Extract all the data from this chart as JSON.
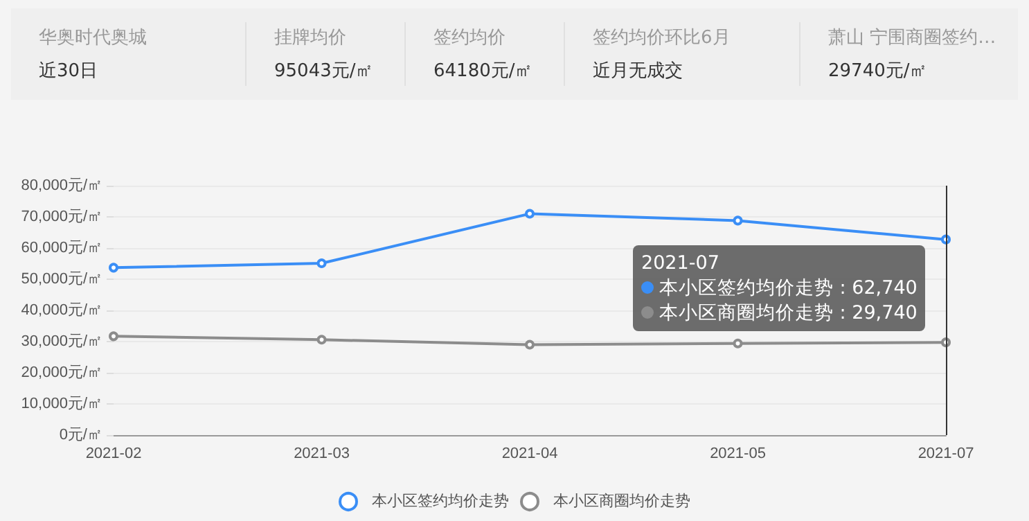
{
  "chart_data": [
    {
      "type": "other",
      "annotations": [
        "华奥时代奥城",
        "近30日",
        "挂牌均价",
        "95043元/㎡",
        "签约均价",
        "64180元/㎡",
        "签约均价环比6月",
        "近月无成交",
        "萧山 宁围商圈签约…",
        "29740元/㎡"
      ]
    },
    {
      "type": "line",
      "categories": [
        "2021-02",
        "2021-03",
        "2021-04",
        "2021-05",
        "2021-07"
      ],
      "series": [
        {
          "name": "本小区签约均价走势",
          "color": "#3a8ef6",
          "values": [
            53700,
            55100,
            71000,
            68800,
            62740
          ]
        },
        {
          "name": "本小区商圈均价走势",
          "color": "#8c8c8c",
          "values": [
            31700,
            30600,
            29000,
            29400,
            29740
          ]
        }
      ],
      "ylim": [
        0,
        80000
      ],
      "yticks": [
        {
          "value": 0,
          "label": "0元/㎡"
        },
        {
          "value": 10000,
          "label": "10,000元/㎡"
        },
        {
          "value": 20000,
          "label": "20,000元/㎡"
        },
        {
          "value": 30000,
          "label": "30,000元/㎡"
        },
        {
          "value": 40000,
          "label": "40,000元/㎡"
        },
        {
          "value": 50000,
          "label": "50,000元/㎡"
        },
        {
          "value": 60000,
          "label": "60,000元/㎡"
        },
        {
          "value": 70000,
          "label": "70,000元/㎡"
        },
        {
          "value": 80000,
          "label": "80,000元/㎡"
        }
      ],
      "grid": "y",
      "legend": "bottom",
      "marker": "circle",
      "line_style": "solid",
      "ref_lines": [
        {
          "axis": "x",
          "value": "2021-07",
          "color": "#333333"
        }
      ],
      "annotations": [
        "2021-07",
        "本小区签约均价走势 : 62,740",
        "本小区商圈均价走势 : 29,740"
      ]
    }
  ]
}
